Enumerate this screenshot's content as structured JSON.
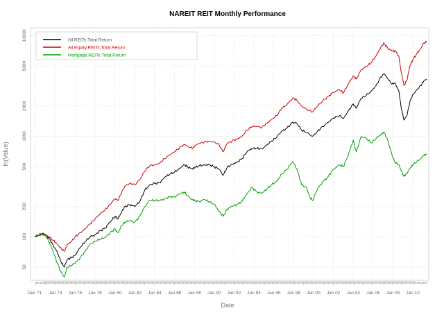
{
  "chart_data": {
    "type": "line",
    "title": "NAREIT REIT Monthly Performance",
    "xlabel": "Date",
    "ylabel": "ln(Value)",
    "y_scale": "log",
    "ylim": [
      37,
      12000
    ],
    "xlim": [
      1971.5,
      2011.6
    ],
    "y_ticks": [
      50,
      100,
      200,
      500,
      1000,
      2000,
      5000,
      10000
    ],
    "y_tick_labels": [
      "50",
      "100",
      "200",
      "500",
      "1000",
      "2000",
      "5000",
      "10000"
    ],
    "x_tick_labels": [
      "Dec 71",
      "Jan 74",
      "Jan 76",
      "Jan 78",
      "Jan 80",
      "Jan 82",
      "Jan 84",
      "Jan 86",
      "Jan 88",
      "Jan 90",
      "Jan 92",
      "Jan 94",
      "Jan 96",
      "Jan 98",
      "Jan 00",
      "Jan 02",
      "Jan 04",
      "Jan 06",
      "Jan 08",
      "Jan 10"
    ],
    "x_tick_years": [
      1971.92,
      1974,
      1976,
      1978,
      1980,
      1982,
      1984,
      1986,
      1988,
      1990,
      1992,
      1994,
      1996,
      1998,
      2000,
      2002,
      2004,
      2006,
      2008,
      2010
    ],
    "grid": true,
    "legend_position": "top-left",
    "series": [
      {
        "name": "All.REITs.Total.Return",
        "color": "#000000",
        "points": [
          [
            1971.92,
            100
          ],
          [
            1972.3,
            104
          ],
          [
            1972.7,
            108
          ],
          [
            1973.0,
            106
          ],
          [
            1973.4,
            96
          ],
          [
            1973.8,
            82
          ],
          [
            1974.2,
            70
          ],
          [
            1974.6,
            56
          ],
          [
            1974.9,
            50
          ],
          [
            1975.2,
            60
          ],
          [
            1975.6,
            62
          ],
          [
            1976.0,
            66
          ],
          [
            1976.5,
            78
          ],
          [
            1977.0,
            90
          ],
          [
            1977.5,
            100
          ],
          [
            1978.0,
            105
          ],
          [
            1978.5,
            115
          ],
          [
            1979.0,
            122
          ],
          [
            1979.5,
            140
          ],
          [
            1980.0,
            160
          ],
          [
            1980.3,
            150
          ],
          [
            1980.7,
            180
          ],
          [
            1981.0,
            200
          ],
          [
            1981.5,
            210
          ],
          [
            1982.0,
            200
          ],
          [
            1982.5,
            225
          ],
          [
            1983.0,
            290
          ],
          [
            1983.5,
            330
          ],
          [
            1984.0,
            340
          ],
          [
            1984.5,
            345
          ],
          [
            1985.0,
            390
          ],
          [
            1985.5,
            420
          ],
          [
            1986.0,
            440
          ],
          [
            1986.5,
            480
          ],
          [
            1987.0,
            520
          ],
          [
            1987.3,
            500
          ],
          [
            1987.8,
            470
          ],
          [
            1988.0,
            490
          ],
          [
            1988.5,
            510
          ],
          [
            1989.0,
            520
          ],
          [
            1989.5,
            520
          ],
          [
            1990.0,
            500
          ],
          [
            1990.5,
            470
          ],
          [
            1990.9,
            410
          ],
          [
            1991.3,
            490
          ],
          [
            1991.8,
            530
          ],
          [
            1992.3,
            550
          ],
          [
            1992.8,
            600
          ],
          [
            1993.3,
            700
          ],
          [
            1993.8,
            760
          ],
          [
            1994.3,
            760
          ],
          [
            1994.8,
            750
          ],
          [
            1995.3,
            820
          ],
          [
            1995.8,
            900
          ],
          [
            1996.3,
            980
          ],
          [
            1996.8,
            1130
          ],
          [
            1997.3,
            1200
          ],
          [
            1997.9,
            1380
          ],
          [
            1998.3,
            1350
          ],
          [
            1998.8,
            1150
          ],
          [
            1999.3,
            1090
          ],
          [
            1999.9,
            1000
          ],
          [
            2000.4,
            1120
          ],
          [
            2000.9,
            1250
          ],
          [
            2001.5,
            1380
          ],
          [
            2002.0,
            1520
          ],
          [
            2002.6,
            1600
          ],
          [
            2003.0,
            1500
          ],
          [
            2003.5,
            1790
          ],
          [
            2004.0,
            2100
          ],
          [
            2004.3,
            1900
          ],
          [
            2004.8,
            2400
          ],
          [
            2005.3,
            2550
          ],
          [
            2005.8,
            2800
          ],
          [
            2006.3,
            3200
          ],
          [
            2006.8,
            3900
          ],
          [
            2007.1,
            4200
          ],
          [
            2007.5,
            3700
          ],
          [
            2007.9,
            3300
          ],
          [
            2008.2,
            3400
          ],
          [
            2008.6,
            2800
          ],
          [
            2008.8,
            2000
          ],
          [
            2009.1,
            1450
          ],
          [
            2009.4,
            1600
          ],
          [
            2009.7,
            2200
          ],
          [
            2010.0,
            2600
          ],
          [
            2010.4,
            2900
          ],
          [
            2010.8,
            3200
          ],
          [
            2011.1,
            3550
          ],
          [
            2011.4,
            3700
          ]
        ]
      },
      {
        "name": "All.Equity.REITs.Total.Return",
        "color": "#cc0000",
        "points": [
          [
            1971.92,
            100
          ],
          [
            1972.3,
            103
          ],
          [
            1972.7,
            107
          ],
          [
            1973.0,
            104
          ],
          [
            1973.4,
            100
          ],
          [
            1973.8,
            92
          ],
          [
            1974.2,
            85
          ],
          [
            1974.6,
            76
          ],
          [
            1974.9,
            72
          ],
          [
            1975.2,
            83
          ],
          [
            1975.6,
            90
          ],
          [
            1976.0,
            100
          ],
          [
            1976.5,
            110
          ],
          [
            1977.0,
            120
          ],
          [
            1977.5,
            135
          ],
          [
            1978.0,
            150
          ],
          [
            1978.5,
            170
          ],
          [
            1979.0,
            185
          ],
          [
            1979.5,
            210
          ],
          [
            1980.0,
            240
          ],
          [
            1980.3,
            230
          ],
          [
            1980.7,
            280
          ],
          [
            1981.0,
            320
          ],
          [
            1981.5,
            340
          ],
          [
            1982.0,
            330
          ],
          [
            1982.5,
            370
          ],
          [
            1983.0,
            450
          ],
          [
            1983.5,
            510
          ],
          [
            1984.0,
            520
          ],
          [
            1984.5,
            540
          ],
          [
            1985.0,
            600
          ],
          [
            1985.5,
            650
          ],
          [
            1986.0,
            700
          ],
          [
            1986.5,
            770
          ],
          [
            1987.0,
            830
          ],
          [
            1987.3,
            800
          ],
          [
            1987.8,
            760
          ],
          [
            1988.0,
            800
          ],
          [
            1988.5,
            850
          ],
          [
            1989.0,
            880
          ],
          [
            1989.5,
            890
          ],
          [
            1990.0,
            880
          ],
          [
            1990.5,
            820
          ],
          [
            1990.9,
            700
          ],
          [
            1991.3,
            850
          ],
          [
            1991.8,
            900
          ],
          [
            1992.3,
            940
          ],
          [
            1992.8,
            1000
          ],
          [
            1993.3,
            1150
          ],
          [
            1993.8,
            1250
          ],
          [
            1994.3,
            1250
          ],
          [
            1994.8,
            1230
          ],
          [
            1995.3,
            1350
          ],
          [
            1995.8,
            1480
          ],
          [
            1996.3,
            1600
          ],
          [
            1996.8,
            1900
          ],
          [
            1997.3,
            2050
          ],
          [
            1997.9,
            2400
          ],
          [
            1998.3,
            2300
          ],
          [
            1998.8,
            2000
          ],
          [
            1999.3,
            1850
          ],
          [
            1999.9,
            1750
          ],
          [
            2000.4,
            2000
          ],
          [
            2000.9,
            2250
          ],
          [
            2001.5,
            2500
          ],
          [
            2002.0,
            2750
          ],
          [
            2002.6,
            2900
          ],
          [
            2003.0,
            2700
          ],
          [
            2003.5,
            3300
          ],
          [
            2004.0,
            4000
          ],
          [
            2004.3,
            3700
          ],
          [
            2004.8,
            4600
          ],
          [
            2005.3,
            4900
          ],
          [
            2005.8,
            5400
          ],
          [
            2006.3,
            6300
          ],
          [
            2006.8,
            7800
          ],
          [
            2007.1,
            8400
          ],
          [
            2007.5,
            7500
          ],
          [
            2007.9,
            7000
          ],
          [
            2008.2,
            7100
          ],
          [
            2008.6,
            6200
          ],
          [
            2008.8,
            4500
          ],
          [
            2009.1,
            3200
          ],
          [
            2009.4,
            3600
          ],
          [
            2009.7,
            5000
          ],
          [
            2010.0,
            5800
          ],
          [
            2010.4,
            6600
          ],
          [
            2010.8,
            7500
          ],
          [
            2011.1,
            8400
          ],
          [
            2011.4,
            8800
          ]
        ]
      },
      {
        "name": "Mortgage.REITs.Total.Return",
        "color": "#00a000",
        "points": [
          [
            1971.92,
            100
          ],
          [
            1972.3,
            103
          ],
          [
            1972.7,
            106
          ],
          [
            1973.0,
            103
          ],
          [
            1973.4,
            88
          ],
          [
            1973.8,
            70
          ],
          [
            1974.2,
            55
          ],
          [
            1974.6,
            44
          ],
          [
            1974.9,
            40
          ],
          [
            1975.2,
            50
          ],
          [
            1975.6,
            52
          ],
          [
            1976.0,
            55
          ],
          [
            1976.5,
            62
          ],
          [
            1977.0,
            72
          ],
          [
            1977.5,
            85
          ],
          [
            1978.0,
            90
          ],
          [
            1978.5,
            95
          ],
          [
            1979.0,
            98
          ],
          [
            1979.5,
            110
          ],
          [
            1980.0,
            120
          ],
          [
            1980.3,
            110
          ],
          [
            1980.7,
            130
          ],
          [
            1981.0,
            140
          ],
          [
            1981.5,
            145
          ],
          [
            1982.0,
            140
          ],
          [
            1982.5,
            160
          ],
          [
            1983.0,
            200
          ],
          [
            1983.5,
            230
          ],
          [
            1984.0,
            230
          ],
          [
            1984.5,
            228
          ],
          [
            1985.0,
            240
          ],
          [
            1985.5,
            250
          ],
          [
            1986.0,
            250
          ],
          [
            1986.5,
            265
          ],
          [
            1987.0,
            280
          ],
          [
            1987.3,
            255
          ],
          [
            1987.8,
            235
          ],
          [
            1988.0,
            230
          ],
          [
            1988.5,
            225
          ],
          [
            1989.0,
            235
          ],
          [
            1989.5,
            225
          ],
          [
            1990.0,
            210
          ],
          [
            1990.5,
            180
          ],
          [
            1990.9,
            160
          ],
          [
            1991.3,
            190
          ],
          [
            1991.8,
            200
          ],
          [
            1992.3,
            210
          ],
          [
            1992.8,
            225
          ],
          [
            1993.3,
            270
          ],
          [
            1993.8,
            310
          ],
          [
            1994.3,
            280
          ],
          [
            1994.8,
            270
          ],
          [
            1995.3,
            300
          ],
          [
            1995.8,
            330
          ],
          [
            1996.3,
            360
          ],
          [
            1996.8,
            420
          ],
          [
            1997.3,
            470
          ],
          [
            1997.9,
            560
          ],
          [
            1998.3,
            480
          ],
          [
            1998.8,
            330
          ],
          [
            1999.3,
            310
          ],
          [
            1999.6,
            250
          ],
          [
            1999.9,
            230
          ],
          [
            2000.4,
            300
          ],
          [
            2000.9,
            350
          ],
          [
            2001.5,
            400
          ],
          [
            2002.0,
            470
          ],
          [
            2002.6,
            520
          ],
          [
            2003.0,
            500
          ],
          [
            2003.5,
            650
          ],
          [
            2004.0,
            920
          ],
          [
            2004.3,
            700
          ],
          [
            2004.8,
            1000
          ],
          [
            2005.3,
            950
          ],
          [
            2005.8,
            860
          ],
          [
            2006.3,
            950
          ],
          [
            2006.8,
            1050
          ],
          [
            2007.1,
            1100
          ],
          [
            2007.5,
            900
          ],
          [
            2007.9,
            650
          ],
          [
            2008.2,
            550
          ],
          [
            2008.6,
            520
          ],
          [
            2008.8,
            460
          ],
          [
            2009.1,
            400
          ],
          [
            2009.4,
            430
          ],
          [
            2009.7,
            480
          ],
          [
            2010.0,
            520
          ],
          [
            2010.4,
            560
          ],
          [
            2010.8,
            600
          ],
          [
            2011.1,
            650
          ],
          [
            2011.4,
            660
          ]
        ]
      }
    ]
  }
}
